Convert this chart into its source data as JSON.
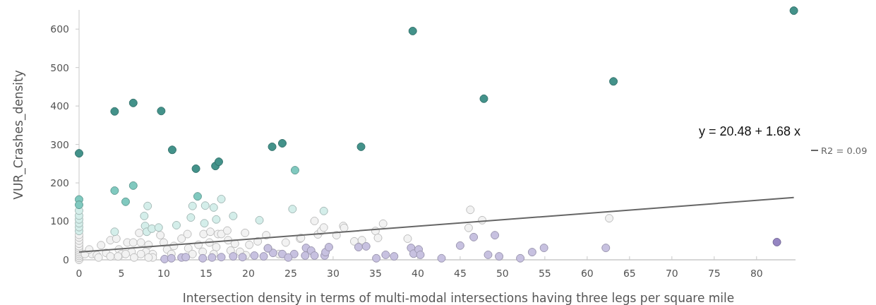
{
  "chart_data": {
    "type": "scatter",
    "xlabel": "Intersection density in terms of multi-modal intersections having three legs per square mile",
    "ylabel": "VUR_Crashes_density",
    "xlim": [
      0,
      84.6
    ],
    "ylim": [
      0,
      650
    ],
    "xticks": [
      0,
      5,
      10,
      15,
      20,
      25,
      30,
      35,
      40,
      45,
      50,
      55,
      60,
      65,
      70,
      75,
      80
    ],
    "yticks": [
      0,
      100,
      200,
      300,
      400,
      500,
      600
    ],
    "grid": false,
    "legend": "right",
    "marker": "circle",
    "annotations": [
      "y = 20.48 + 1.68 x"
    ],
    "series": [
      {
        "x": [
          0,
          0,
          0,
          0,
          0,
          0,
          0,
          0,
          0,
          0,
          0,
          0,
          2.6,
          1.5,
          2.1,
          3.2,
          3.7,
          4.4,
          4.7,
          5.0,
          5.7,
          6.2,
          6.4,
          7.1,
          7.3,
          7.9,
          8.2,
          8.7,
          9.6,
          10,
          10.4,
          10.9,
          11.2,
          12.1,
          12.8,
          12.9,
          13.4,
          14.1,
          14.7,
          15.4,
          15.5,
          16.2,
          16.4,
          16.8,
          17.5,
          17.6,
          18.4,
          19,
          19.6,
          20.1,
          21.1,
          22.1,
          22.3,
          23.6,
          24.4,
          26.1,
          4.6,
          6.5,
          8.7,
          2.3,
          0.7,
          1.2,
          3.7,
          5.5,
          8.2,
          7.3,
          14.6,
          15.9,
          17.9,
          19.7,
          26.2,
          27.8,
          28.2,
          28.6,
          28.9,
          30.4,
          31.2,
          31.3,
          32.5,
          33.4,
          35,
          35.3,
          35.9,
          38.8,
          46.2,
          46,
          47.6,
          62.6
        ],
        "values": [
          0,
          5,
          10,
          15,
          20,
          25,
          30,
          35,
          42,
          50,
          58,
          65,
          38,
          15,
          12,
          18,
          51,
          55,
          27,
          15,
          45,
          21,
          45,
          70,
          45,
          21,
          39,
          15,
          64,
          45,
          27,
          15,
          36,
          55,
          67,
          30,
          15,
          39,
          67,
          45,
          73,
          33,
          67,
          67,
          76,
          51,
          42,
          21,
          70,
          39,
          48,
          64,
          30,
          15,
          45,
          55,
          9,
          6,
          6,
          6,
          15,
          27,
          9,
          15,
          6,
          15,
          21,
          15,
          24,
          12,
          57,
          101,
          66,
          75,
          84,
          64,
          88,
          83,
          48,
          51,
          75,
          57,
          94,
          55,
          130,
          83,
          103,
          108
        ],
        "color": "#f2f2f2"
      },
      {
        "x": [
          10.1,
          10.9,
          12.1,
          12.6,
          14.6,
          15.7,
          16.8,
          18.2,
          19.3,
          20.7,
          21.8,
          22.9,
          24,
          25.4,
          24.7,
          22.3,
          26.8,
          27.4,
          26.7,
          27.8,
          29,
          29.1,
          29.5,
          33,
          33.9,
          35.1,
          36.2,
          37.2,
          39.2,
          39.5,
          40.1,
          40.3,
          42.8,
          45,
          46.6,
          48.3,
          49.1,
          49.6,
          52.1,
          53.5,
          54.9,
          62.2
        ],
        "values": [
          2,
          4,
          6,
          7,
          4,
          6,
          7,
          9,
          7,
          11,
          9,
          18,
          15,
          15,
          6,
          30,
          31,
          24,
          11,
          11,
          11,
          20,
          33,
          33,
          35,
          4,
          13,
          9,
          31,
          16,
          27,
          13,
          4,
          37,
          59,
          13,
          64,
          9,
          4,
          20,
          31,
          31
        ],
        "color": "#c7c1e0"
      },
      {
        "x": [
          82.4
        ],
        "values": [
          46
        ],
        "color": "#9585c2"
      },
      {
        "x": [
          8.1,
          7.7,
          7.8,
          8,
          8.6,
          9.4,
          4.2,
          11.5,
          13.2,
          13.4,
          14.9,
          15.9,
          16.8,
          14.8,
          16.2,
          18.2,
          21.3,
          25.2,
          28.9,
          0,
          0,
          0,
          0,
          0,
          0
        ],
        "values": [
          140,
          114,
          88,
          73,
          81,
          84,
          73,
          90,
          110,
          140,
          141,
          136,
          158,
          95,
          105,
          114,
          103,
          132,
          127,
          75,
          85,
          95,
          105,
          115,
          128
        ],
        "color": "#d4eeea"
      },
      {
        "x": [
          0,
          0,
          4.2,
          6.4,
          5.5,
          14,
          25.5
        ],
        "values": [
          157,
          143,
          180,
          193,
          151,
          165,
          233
        ],
        "color": "#80c9bf"
      },
      {
        "x": [
          0,
          4.2,
          6.4,
          9.7,
          11,
          13.8,
          16.1,
          16.5,
          22.8,
          24,
          33.3,
          39.4,
          47.8,
          63.1,
          84.4
        ],
        "values": [
          277,
          386,
          408,
          387,
          286,
          237,
          244,
          255,
          294,
          303,
          294,
          595,
          419,
          464,
          648
        ],
        "color": "#43928a"
      },
      {
        "type": "line",
        "name": "R2 = 0.09",
        "color": "#666666",
        "marker": "none",
        "x": [
          0,
          84.4
        ],
        "values": [
          20,
          162
        ]
      }
    ]
  }
}
